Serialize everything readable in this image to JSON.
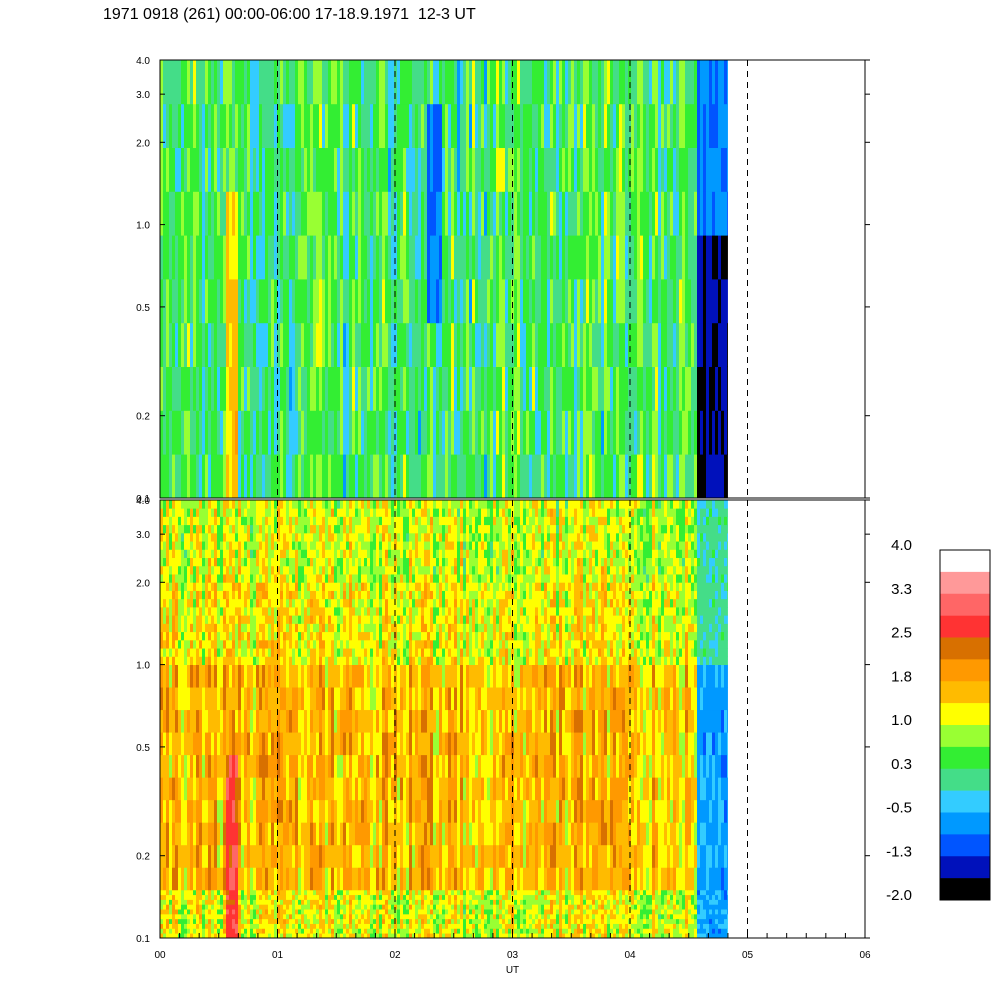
{
  "title": "1971 0918 (261) 00:00-06:00 17-18.9.1971  12-3 UT",
  "chart_data": {
    "type": "heatmap",
    "panels": [
      {
        "name": "",
        "ylim": [
          0.1,
          4.0
        ],
        "yscale": "log",
        "ytick_labels": [
          "4.0",
          "3.0",
          "2.0",
          "1.0",
          "0.5",
          "0.2",
          "0.1"
        ],
        "ytick_values": [
          4.0,
          3.0,
          2.0,
          1.0,
          0.5,
          0.2,
          0.1
        ],
        "data_end_hours": 4.83,
        "level_bands": [
          {
            "from_freq": 0.1,
            "to_freq": 4.0,
            "base_level": 0.3
          }
        ],
        "features": [
          {
            "hour_from": 0.55,
            "hour_to": 0.65,
            "freq_from": 0.1,
            "freq_to": 1.2,
            "level": 1.5
          },
          {
            "hour_from": 2.25,
            "hour_to": 2.4,
            "freq_from": 0.5,
            "freq_to": 2.5,
            "level": -0.9
          },
          {
            "hour_from": 4.55,
            "hour_to": 4.83,
            "freq_from": 0.1,
            "freq_to": 1.0,
            "level": -1.6
          },
          {
            "hour_from": 4.55,
            "hour_to": 4.83,
            "freq_from": 1.0,
            "freq_to": 4.0,
            "level": -0.9
          }
        ]
      },
      {
        "name": "",
        "ylim": [
          0.1,
          4.0
        ],
        "yscale": "log",
        "ytick_labels": [
          "4.0",
          "3.0",
          "2.0",
          "1.0",
          "0.5",
          "0.2",
          "0.1"
        ],
        "ytick_values": [
          4.0,
          3.0,
          2.0,
          1.0,
          0.5,
          0.2,
          0.1
        ],
        "data_end_hours": 4.83,
        "level_bands": [
          {
            "from_freq": 0.1,
            "to_freq": 0.15,
            "base_level": 1.1
          },
          {
            "from_freq": 0.15,
            "to_freq": 1.0,
            "base_level": 1.6
          },
          {
            "from_freq": 1.0,
            "to_freq": 2.0,
            "base_level": 1.2
          },
          {
            "from_freq": 2.0,
            "to_freq": 4.0,
            "base_level": 1.0
          }
        ],
        "features": [
          {
            "hour_from": 0.55,
            "hour_to": 0.65,
            "freq_from": 0.1,
            "freq_to": 0.5,
            "level": 2.7
          },
          {
            "hour_from": 4.55,
            "hour_to": 4.83,
            "freq_from": 0.1,
            "freq_to": 1.0,
            "level": -0.6
          },
          {
            "hour_from": 4.55,
            "hour_to": 4.83,
            "freq_from": 1.0,
            "freq_to": 4.0,
            "level": 0.0
          }
        ]
      }
    ],
    "x_tick_labels": [
      "00",
      "01",
      "02",
      "03",
      "04",
      "05",
      "06"
    ],
    "x_tick_values": [
      0,
      1,
      2,
      3,
      4,
      5,
      6
    ],
    "xlim": [
      0,
      6
    ],
    "xlabel": "UT",
    "dashed_vlines_hours": [
      1,
      2,
      3,
      4,
      5
    ],
    "colorbar": {
      "labels": [
        "4.0",
        "3.3",
        "2.5",
        "1.8",
        "1.0",
        "0.3",
        "-0.5",
        "-1.3",
        "-2.0"
      ],
      "colors": [
        "#ffffff",
        "#ff9999",
        "#ff6666",
        "#ff3333",
        "#d87000",
        "#ff9900",
        "#ffbb00",
        "#ffff00",
        "#99ff33",
        "#33ee33",
        "#44dd88",
        "#33ccff",
        "#0099ff",
        "#0055ff",
        "#0011bb",
        "#000000"
      ],
      "min": -2.0,
      "max": 4.0
    }
  }
}
